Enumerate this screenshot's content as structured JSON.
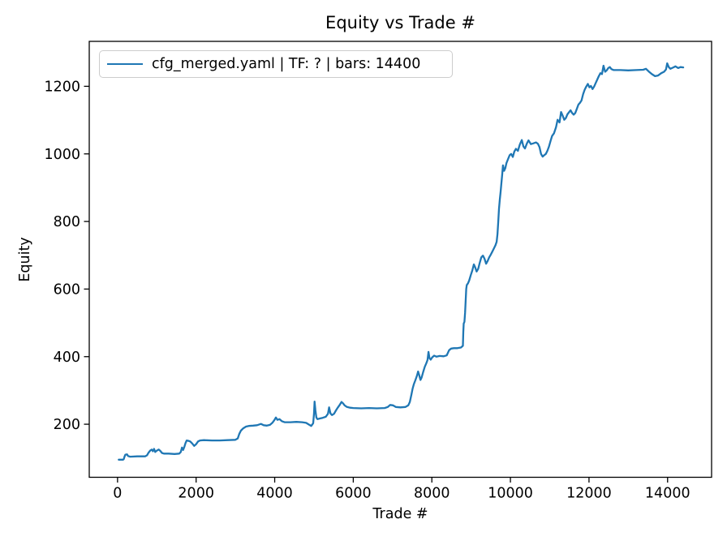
{
  "figure": {
    "title": "Equity vs Trade #",
    "xlabel": "Trade #",
    "ylabel": "Equity",
    "legend_label": "cfg_merged.yaml | TF: ? | bars: 14400"
  },
  "chart_data": {
    "type": "line",
    "title": "Equity vs Trade #",
    "xlabel": "Trade #",
    "ylabel": "Equity",
    "grid": false,
    "legend_position": "upper left",
    "xlim": [
      -720,
      15120
    ],
    "ylim": [
      43,
      1333
    ],
    "x_ticks": [
      0,
      2000,
      4000,
      6000,
      8000,
      10000,
      12000,
      14000
    ],
    "y_ticks": [
      200,
      400,
      600,
      800,
      1000,
      1200
    ],
    "series": [
      {
        "name": "cfg_merged.yaml | TF: ? | bars: 14400",
        "color": "#1f77b4",
        "points": [
          [
            30,
            95
          ],
          [
            140,
            95
          ],
          [
            160,
            97
          ],
          [
            175,
            103
          ],
          [
            200,
            110
          ],
          [
            240,
            111
          ],
          [
            270,
            106
          ],
          [
            320,
            104
          ],
          [
            500,
            105
          ],
          [
            700,
            105
          ],
          [
            750,
            108
          ],
          [
            790,
            116
          ],
          [
            830,
            122
          ],
          [
            870,
            125
          ],
          [
            900,
            120
          ],
          [
            930,
            127
          ],
          [
            960,
            118
          ],
          [
            1000,
            122
          ],
          [
            1050,
            125
          ],
          [
            1090,
            121
          ],
          [
            1130,
            115
          ],
          [
            1180,
            113
          ],
          [
            1300,
            113
          ],
          [
            1450,
            112
          ],
          [
            1570,
            113
          ],
          [
            1610,
            118
          ],
          [
            1640,
            131
          ],
          [
            1670,
            124
          ],
          [
            1700,
            133
          ],
          [
            1730,
            144
          ],
          [
            1760,
            152
          ],
          [
            1800,
            151
          ],
          [
            1850,
            149
          ],
          [
            1900,
            143
          ],
          [
            1950,
            136
          ],
          [
            2000,
            141
          ],
          [
            2050,
            149
          ],
          [
            2100,
            152
          ],
          [
            2200,
            153
          ],
          [
            2400,
            152
          ],
          [
            2600,
            152
          ],
          [
            2800,
            153
          ],
          [
            3000,
            154
          ],
          [
            3060,
            158
          ],
          [
            3100,
            172
          ],
          [
            3140,
            181
          ],
          [
            3200,
            188
          ],
          [
            3270,
            193
          ],
          [
            3340,
            195
          ],
          [
            3450,
            196
          ],
          [
            3550,
            197
          ],
          [
            3650,
            201
          ],
          [
            3720,
            197
          ],
          [
            3800,
            196
          ],
          [
            3880,
            198
          ],
          [
            3940,
            204
          ],
          [
            3990,
            212
          ],
          [
            4030,
            220
          ],
          [
            4070,
            213
          ],
          [
            4120,
            215
          ],
          [
            4180,
            209
          ],
          [
            4250,
            206
          ],
          [
            4400,
            206
          ],
          [
            4550,
            207
          ],
          [
            4700,
            206
          ],
          [
            4800,
            204
          ],
          [
            4870,
            199
          ],
          [
            4930,
            195
          ],
          [
            4980,
            203
          ],
          [
            5000,
            232
          ],
          [
            5015,
            267
          ],
          [
            5035,
            242
          ],
          [
            5060,
            220
          ],
          [
            5090,
            215
          ],
          [
            5150,
            217
          ],
          [
            5220,
            219
          ],
          [
            5300,
            222
          ],
          [
            5355,
            231
          ],
          [
            5385,
            250
          ],
          [
            5420,
            232
          ],
          [
            5460,
            227
          ],
          [
            5510,
            231
          ],
          [
            5560,
            241
          ],
          [
            5610,
            250
          ],
          [
            5660,
            258
          ],
          [
            5700,
            266
          ],
          [
            5740,
            262
          ],
          [
            5780,
            256
          ],
          [
            5840,
            251
          ],
          [
            5920,
            249
          ],
          [
            6000,
            248
          ],
          [
            6200,
            247
          ],
          [
            6400,
            248
          ],
          [
            6600,
            247
          ],
          [
            6800,
            248
          ],
          [
            6880,
            251
          ],
          [
            6940,
            257
          ],
          [
            7010,
            256
          ],
          [
            7080,
            251
          ],
          [
            7200,
            250
          ],
          [
            7330,
            251
          ],
          [
            7400,
            256
          ],
          [
            7440,
            266
          ],
          [
            7480,
            288
          ],
          [
            7510,
            305
          ],
          [
            7540,
            318
          ],
          [
            7580,
            330
          ],
          [
            7620,
            343
          ],
          [
            7650,
            356
          ],
          [
            7680,
            345
          ],
          [
            7710,
            331
          ],
          [
            7740,
            338
          ],
          [
            7780,
            355
          ],
          [
            7820,
            370
          ],
          [
            7860,
            381
          ],
          [
            7890,
            390
          ],
          [
            7915,
            414
          ],
          [
            7940,
            396
          ],
          [
            7970,
            391
          ],
          [
            8010,
            398
          ],
          [
            8060,
            403
          ],
          [
            8120,
            400
          ],
          [
            8200,
            402
          ],
          [
            8300,
            401
          ],
          [
            8380,
            404
          ],
          [
            8440,
            419
          ],
          [
            8490,
            424
          ],
          [
            8560,
            425
          ],
          [
            8650,
            425
          ],
          [
            8740,
            427
          ],
          [
            8790,
            432
          ],
          [
            8800,
            473
          ],
          [
            8810,
            498
          ],
          [
            8830,
            503
          ],
          [
            8845,
            530
          ],
          [
            8860,
            565
          ],
          [
            8875,
            600
          ],
          [
            8890,
            612
          ],
          [
            8920,
            617
          ],
          [
            8950,
            625
          ],
          [
            8990,
            641
          ],
          [
            9030,
            655
          ],
          [
            9070,
            673
          ],
          [
            9100,
            665
          ],
          [
            9140,
            652
          ],
          [
            9180,
            660
          ],
          [
            9220,
            678
          ],
          [
            9260,
            694
          ],
          [
            9300,
            699
          ],
          [
            9340,
            690
          ],
          [
            9380,
            675
          ],
          [
            9420,
            683
          ],
          [
            9460,
            694
          ],
          [
            9500,
            702
          ],
          [
            9540,
            711
          ],
          [
            9580,
            720
          ],
          [
            9620,
            730
          ],
          [
            9650,
            740
          ],
          [
            9670,
            762
          ],
          [
            9690,
            800
          ],
          [
            9710,
            838
          ],
          [
            9730,
            865
          ],
          [
            9750,
            888
          ],
          [
            9770,
            912
          ],
          [
            9790,
            938
          ],
          [
            9810,
            966
          ],
          [
            9840,
            950
          ],
          [
            9870,
            958
          ],
          [
            9900,
            973
          ],
          [
            9940,
            985
          ],
          [
            9980,
            996
          ],
          [
            10020,
            1000
          ],
          [
            10060,
            991
          ],
          [
            10100,
            1007
          ],
          [
            10140,
            1015
          ],
          [
            10190,
            1009
          ],
          [
            10240,
            1028
          ],
          [
            10290,
            1041
          ],
          [
            10330,
            1022
          ],
          [
            10370,
            1016
          ],
          [
            10420,
            1031
          ],
          [
            10460,
            1040
          ],
          [
            10520,
            1029
          ],
          [
            10580,
            1031
          ],
          [
            10650,
            1034
          ],
          [
            10700,
            1030
          ],
          [
            10740,
            1020
          ],
          [
            10780,
            1000
          ],
          [
            10820,
            992
          ],
          [
            10860,
            996
          ],
          [
            10900,
            1000
          ],
          [
            10940,
            1009
          ],
          [
            10980,
            1021
          ],
          [
            11020,
            1038
          ],
          [
            11060,
            1053
          ],
          [
            11110,
            1061
          ],
          [
            11160,
            1079
          ],
          [
            11200,
            1101
          ],
          [
            11250,
            1093
          ],
          [
            11290,
            1124
          ],
          [
            11330,
            1113
          ],
          [
            11370,
            1101
          ],
          [
            11410,
            1106
          ],
          [
            11450,
            1117
          ],
          [
            11490,
            1123
          ],
          [
            11530,
            1129
          ],
          [
            11570,
            1121
          ],
          [
            11610,
            1116
          ],
          [
            11650,
            1121
          ],
          [
            11690,
            1133
          ],
          [
            11730,
            1146
          ],
          [
            11770,
            1151
          ],
          [
            11810,
            1158
          ],
          [
            11850,
            1177
          ],
          [
            11890,
            1190
          ],
          [
            11930,
            1199
          ],
          [
            11970,
            1207
          ],
          [
            12010,
            1197
          ],
          [
            12050,
            1201
          ],
          [
            12090,
            1192
          ],
          [
            12130,
            1199
          ],
          [
            12170,
            1210
          ],
          [
            12210,
            1220
          ],
          [
            12250,
            1230
          ],
          [
            12290,
            1239
          ],
          [
            12330,
            1236
          ],
          [
            12370,
            1261
          ],
          [
            12410,
            1243
          ],
          [
            12450,
            1247
          ],
          [
            12490,
            1254
          ],
          [
            12530,
            1257
          ],
          [
            12570,
            1251
          ],
          [
            12630,
            1248
          ],
          [
            12800,
            1248
          ],
          [
            13000,
            1247
          ],
          [
            13200,
            1248
          ],
          [
            13380,
            1249
          ],
          [
            13450,
            1252
          ],
          [
            13520,
            1244
          ],
          [
            13600,
            1236
          ],
          [
            13680,
            1230
          ],
          [
            13760,
            1232
          ],
          [
            13840,
            1239
          ],
          [
            13910,
            1243
          ],
          [
            13960,
            1250
          ],
          [
            13990,
            1268
          ],
          [
            14030,
            1257
          ],
          [
            14070,
            1252
          ],
          [
            14130,
            1255
          ],
          [
            14200,
            1259
          ],
          [
            14270,
            1254
          ],
          [
            14330,
            1257
          ],
          [
            14400,
            1256
          ]
        ]
      }
    ]
  }
}
